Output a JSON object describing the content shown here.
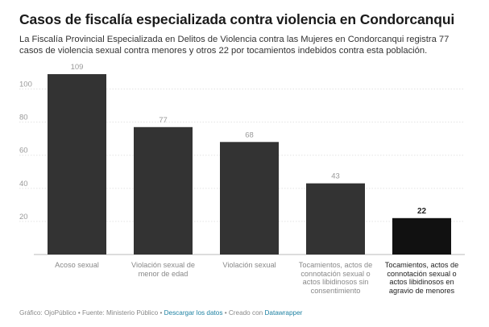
{
  "header": {
    "title": "Casos de fiscalía especializada contra violencia en Condorcanqui",
    "subtitle": "La Fiscalía Provincial Especializada en Delitos de Violencia contra las Mujeres en Condorcanqui registra 77 casos de violencia sexual contra menores y otros 22 por tocamientos indebidos contra esta población."
  },
  "chart_data": {
    "type": "bar",
    "categories": [
      "Acoso sexual",
      "Violación sexual de menor de edad",
      "Violación sexual",
      "Tocamientos, actos de connotación sexual o actos libidinosos sin consentimiento",
      "Tocamientos, actos de connotación sexual o actos libidinosos en agravio de menores"
    ],
    "values": [
      109,
      77,
      68,
      43,
      22
    ],
    "highlighted_index": 4,
    "ylim": [
      0,
      110
    ],
    "yticks": [
      20,
      40,
      60,
      80,
      100
    ],
    "grid": true,
    "colors": {
      "bar": "#333333",
      "highlight": "#111111",
      "grid": "#e3e3e3",
      "axis": "#bbbbbb"
    }
  },
  "footer": {
    "chart_by": "Gráfico: OjoPúblico",
    "source": "Fuente: Ministerio Público",
    "download": "Descargar los datos",
    "created_with": "Creado con",
    "tool": "Datawrapper"
  }
}
